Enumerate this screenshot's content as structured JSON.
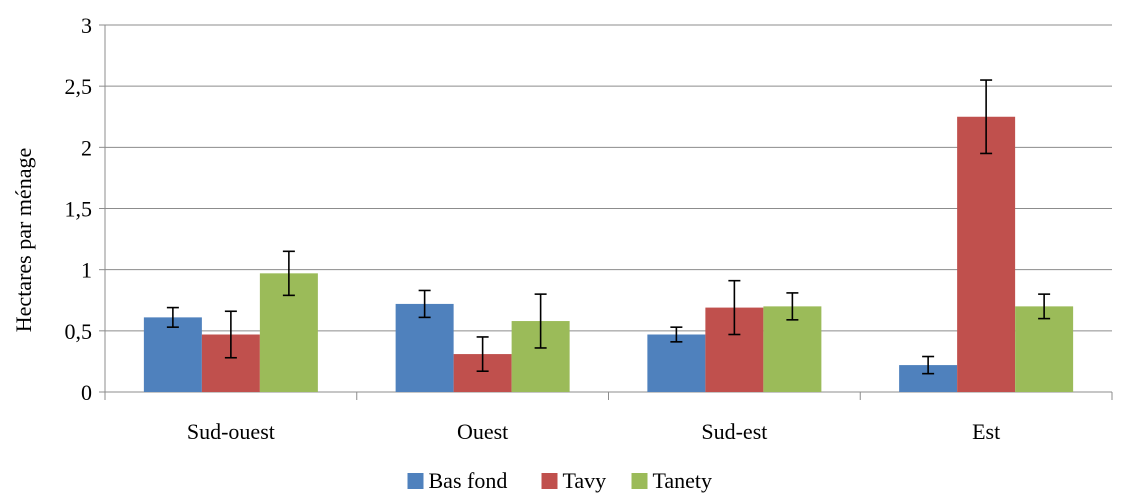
{
  "chart_data": {
    "type": "bar",
    "title": "",
    "xlabel": "",
    "ylabel": "Hectares par ménage",
    "ylim": [
      0,
      3
    ],
    "yticks": [
      "0",
      "0,5",
      "1",
      "1,5",
      "2",
      "2,5",
      "3"
    ],
    "ytick_values": [
      0,
      0.5,
      1,
      1.5,
      2,
      2.5,
      3
    ],
    "grid": true,
    "legend_position": "bottom",
    "categories": [
      "Sud-ouest",
      "Ouest",
      "Sud-est",
      "Est"
    ],
    "series": [
      {
        "name": "Bas fond",
        "color": "#4f81bd",
        "values": [
          0.61,
          0.72,
          0.47,
          0.22
        ],
        "errors": [
          0.08,
          0.11,
          0.06,
          0.07
        ]
      },
      {
        "name": "Tavy",
        "color": "#c0504d",
        "values": [
          0.47,
          0.31,
          0.69,
          2.25
        ],
        "errors": [
          0.19,
          0.14,
          0.22,
          0.3
        ]
      },
      {
        "name": "Tanety",
        "color": "#9bbb59",
        "values": [
          0.97,
          0.58,
          0.7,
          0.7
        ],
        "errors": [
          0.18,
          0.22,
          0.11,
          0.1
        ]
      }
    ]
  }
}
